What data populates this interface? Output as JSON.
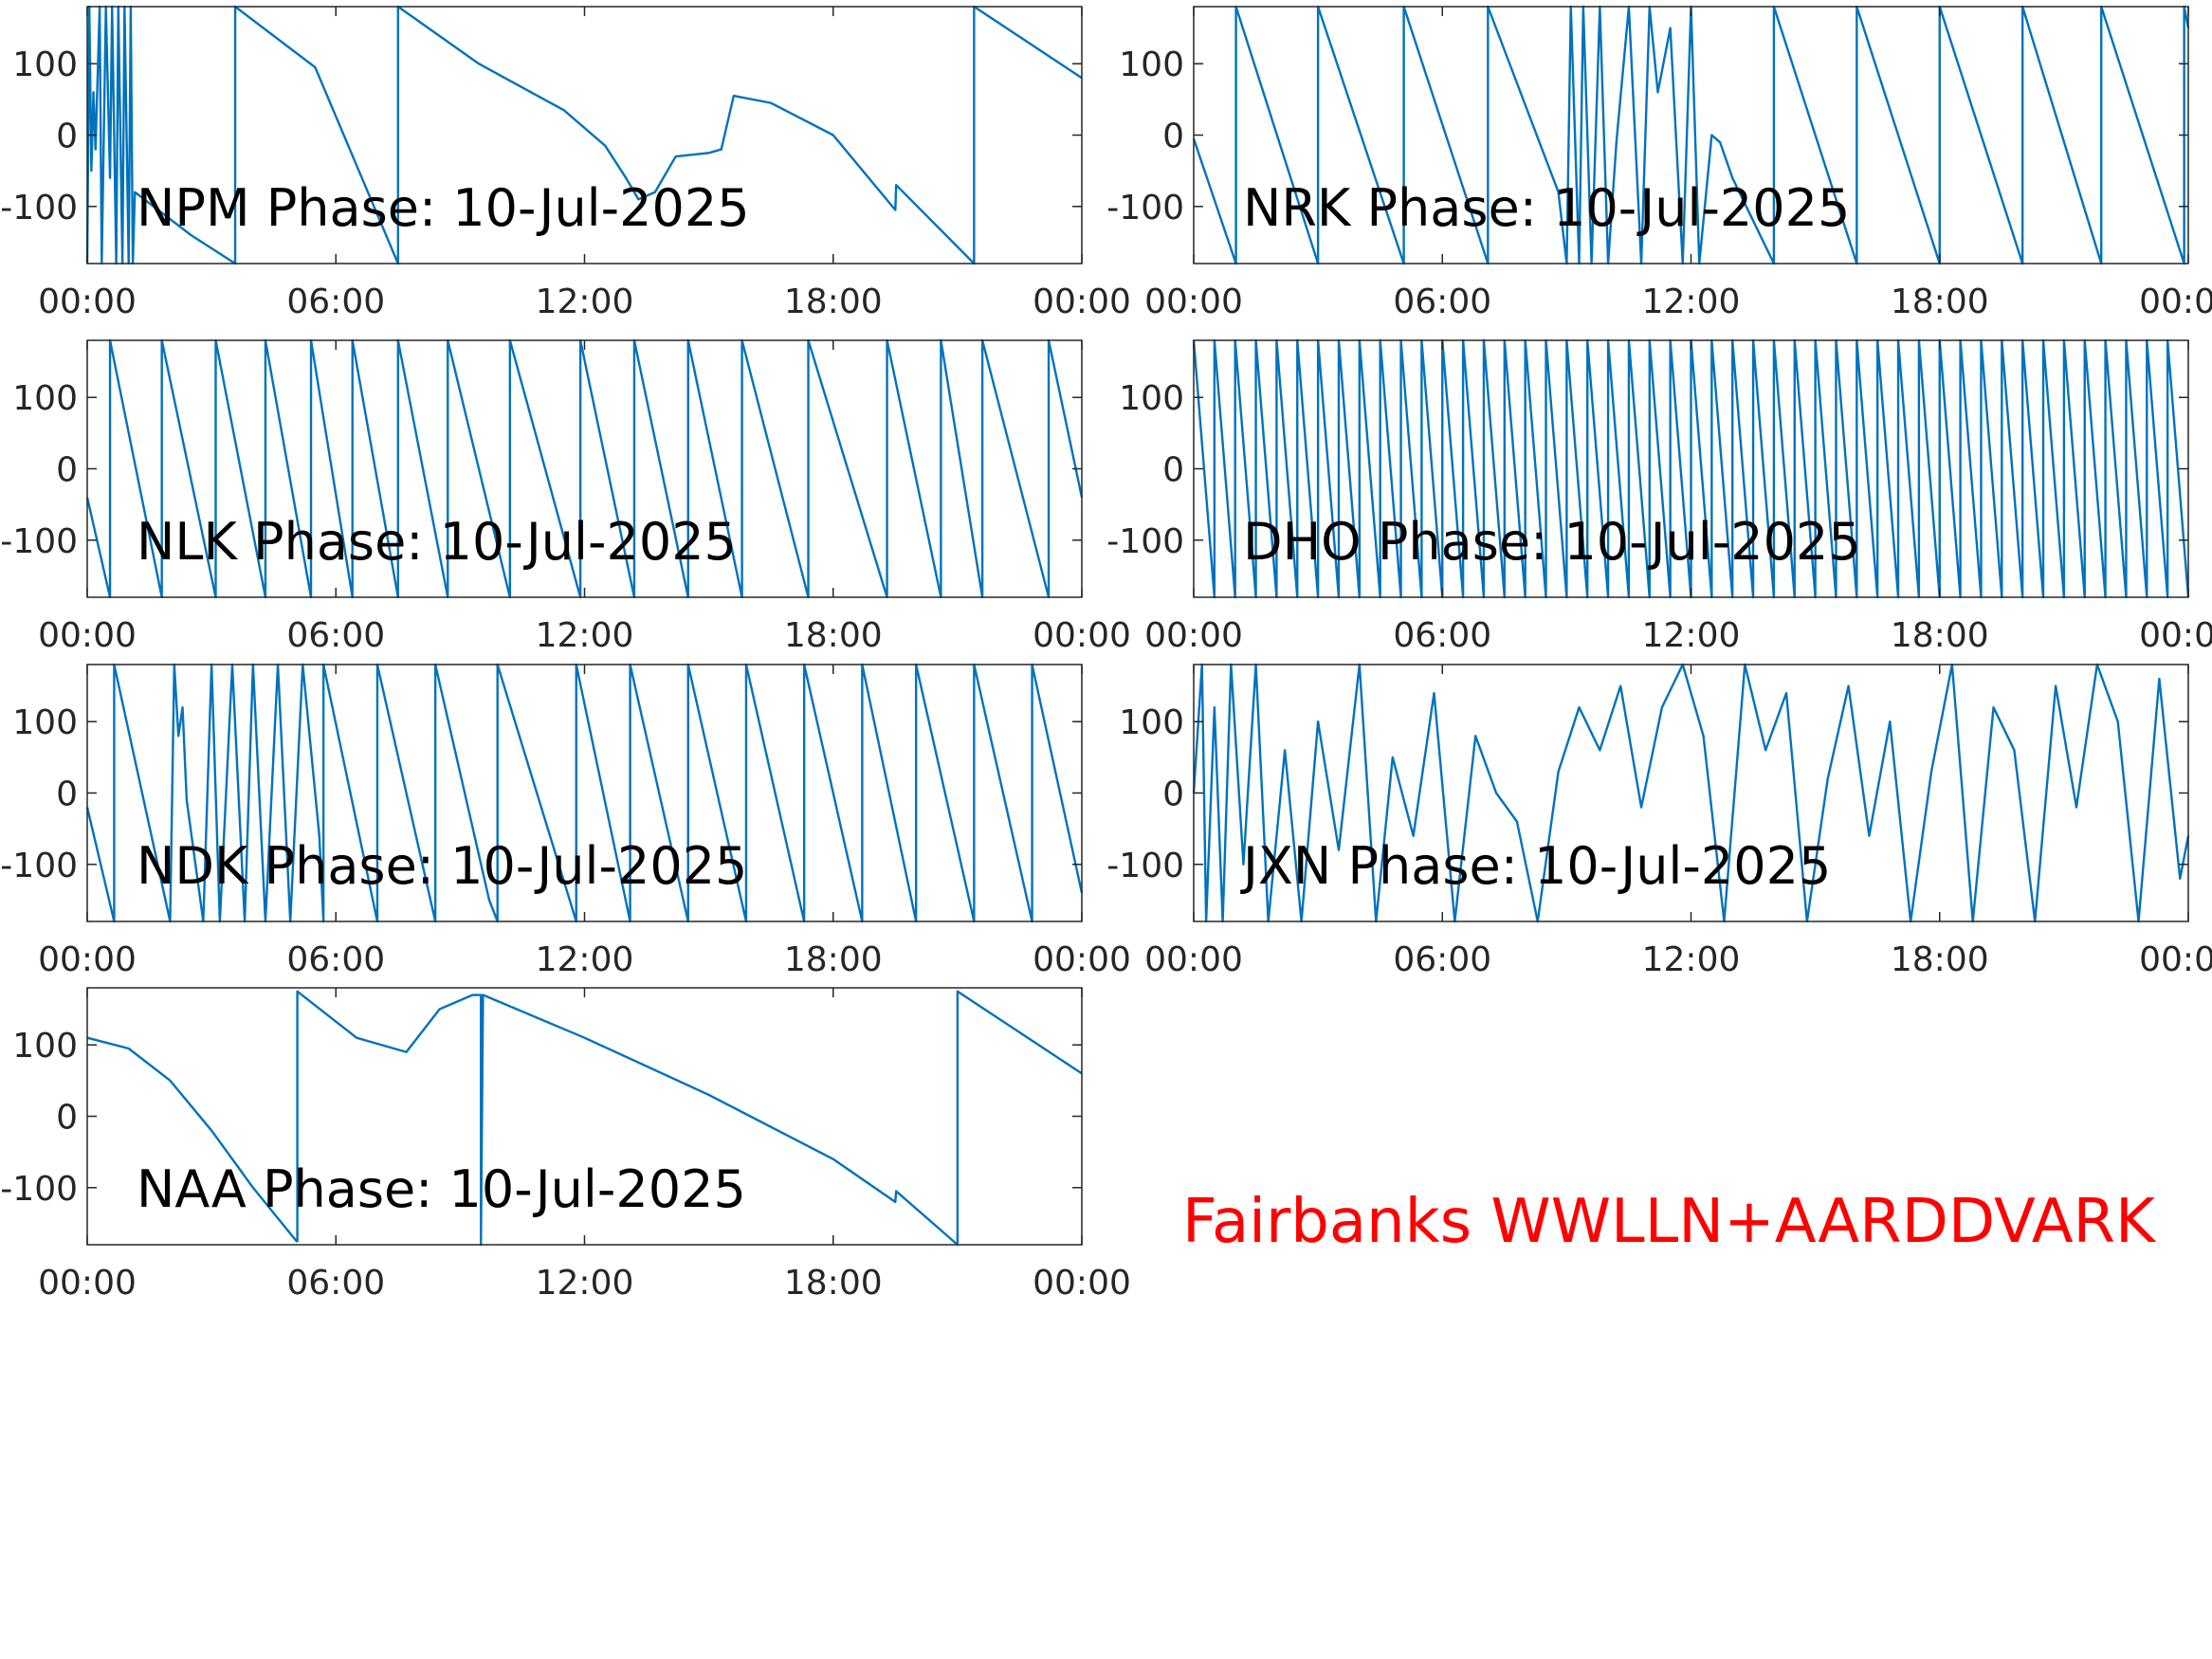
{
  "chart_data": [
    {
      "type": "line",
      "title": "NPM Phase: 10-Jul-2025",
      "color": "#0072bd",
      "x": [
        0,
        0.05,
        0.1,
        0.15,
        0.2,
        0.3,
        0.35,
        0.45,
        0.55,
        0.6,
        0.7,
        0.75,
        0.85,
        0.9,
        1.0,
        1.05,
        1.1,
        1.15,
        2.5,
        3.57,
        3.57,
        5.5,
        7.5,
        7.5,
        9.45,
        11.5,
        12.5,
        13.0,
        13.3,
        13.7,
        14.2,
        15.0,
        15.3,
        15.6,
        16.5,
        18.0,
        19.5,
        19.52,
        21.4,
        21.4,
        24
      ],
      "values": [
        -180,
        180,
        -50,
        60,
        -20,
        180,
        -180,
        180,
        -60,
        180,
        -180,
        180,
        -180,
        180,
        -180,
        180,
        -180,
        -80,
        -140,
        -180,
        180,
        95,
        -180,
        180,
        100,
        35,
        -15,
        -60,
        -90,
        -80,
        -30,
        -25,
        -20,
        55,
        45,
        0,
        -105,
        -70,
        -180,
        180,
        80
      ],
      "xlim": [
        0,
        24
      ],
      "ylim": [
        -180,
        180
      ],
      "xticks": [
        {
          "value": 0,
          "label": "00:00"
        },
        {
          "value": 6,
          "label": "06:00"
        },
        {
          "value": 12,
          "label": "12:00"
        },
        {
          "value": 18,
          "label": "18:00"
        },
        {
          "value": 24,
          "label": "00:00"
        }
      ],
      "yticks": [
        -100,
        0,
        100
      ]
    },
    {
      "type": "line",
      "title": "NRK Phase: 10-Jul-2025",
      "color": "#0072bd",
      "x": [
        0,
        1.02,
        1.02,
        3.0,
        3.0,
        5.07,
        5.07,
        7.1,
        7.1,
        8.8,
        9.0,
        9.1,
        9.3,
        9.4,
        9.6,
        9.8,
        10.0,
        10.2,
        10.5,
        10.8,
        11.0,
        11.2,
        11.5,
        11.8,
        12.0,
        12.2,
        12.5,
        12.7,
        13.0,
        14.0,
        14.0,
        16.0,
        16.0,
        18.0,
        18.0,
        20.0,
        20.0,
        21.9,
        21.9,
        23.9,
        23.9,
        24
      ],
      "values": [
        -5,
        -180,
        180,
        -180,
        180,
        -180,
        180,
        -180,
        180,
        -80,
        -180,
        180,
        -180,
        180,
        -180,
        180,
        -180,
        -10,
        180,
        -180,
        180,
        60,
        150,
        -180,
        180,
        -180,
        0,
        -10,
        -60,
        -180,
        180,
        -180,
        180,
        -180,
        180,
        -180,
        180,
        -180,
        180,
        -180,
        180,
        150
      ],
      "xlim": [
        0,
        24
      ],
      "ylim": [
        -180,
        180
      ],
      "xticks": [
        {
          "value": 0,
          "label": "00:00"
        },
        {
          "value": 6,
          "label": "06:00"
        },
        {
          "value": 12,
          "label": "12:00"
        },
        {
          "value": 18,
          "label": "18:00"
        },
        {
          "value": 24,
          "label": "00:00"
        }
      ],
      "yticks": [
        -100,
        0,
        100
      ]
    },
    {
      "type": "line",
      "title": "NLK Phase: 10-Jul-2025",
      "color": "#0072bd",
      "x": [
        0,
        0.55,
        0.55,
        1.8,
        1.8,
        3.1,
        3.1,
        4.3,
        4.3,
        5.4,
        5.4,
        6.4,
        6.4,
        7.5,
        7.5,
        8.7,
        8.7,
        10.2,
        10.2,
        11.9,
        11.9,
        13.2,
        13.2,
        14.5,
        14.5,
        15.8,
        15.8,
        17.4,
        17.4,
        19.3,
        19.3,
        20.6,
        20.6,
        21.6,
        21.6,
        23.2,
        23.2,
        24
      ],
      "values": [
        -40,
        -180,
        180,
        -180,
        180,
        -180,
        180,
        -180,
        180,
        -180,
        180,
        -180,
        180,
        -180,
        180,
        -180,
        180,
        -180,
        180,
        -180,
        180,
        -180,
        180,
        -180,
        180,
        -180,
        180,
        -180,
        180,
        -180,
        180,
        -180,
        180,
        -180,
        180,
        -180,
        180,
        -40
      ],
      "xlim": [
        0,
        24
      ],
      "ylim": [
        -180,
        180
      ],
      "xticks": [
        {
          "value": 0,
          "label": "00:00"
        },
        {
          "value": 6,
          "label": "06:00"
        },
        {
          "value": 12,
          "label": "12:00"
        },
        {
          "value": 18,
          "label": "18:00"
        },
        {
          "value": 24,
          "label": "00:00"
        }
      ],
      "yticks": [
        -100,
        0,
        100
      ]
    },
    {
      "type": "line",
      "title": "DHO Phase: 10-Jul-2025",
      "color": "#0072bd",
      "x": [
        0,
        0.5,
        0.5,
        1,
        1,
        1.5,
        1.5,
        2,
        2,
        2.5,
        2.5,
        3,
        3,
        3.5,
        3.5,
        4,
        4,
        4.5,
        4.5,
        5,
        5,
        5.5,
        5.5,
        6,
        6,
        6.5,
        6.5,
        7,
        7,
        7.5,
        7.5,
        8,
        8,
        8.5,
        8.5,
        9,
        9,
        9.5,
        9.5,
        10,
        10,
        10.5,
        10.5,
        11,
        11,
        11.5,
        11.5,
        12,
        12,
        12.5,
        12.5,
        13,
        13,
        13.5,
        13.5,
        14,
        14,
        14.5,
        14.5,
        15,
        15,
        15.5,
        15.5,
        16,
        16,
        16.5,
        16.5,
        17,
        17,
        17.5,
        17.5,
        18,
        18,
        18.5,
        18.5,
        19,
        19,
        19.5,
        19.5,
        20,
        20,
        20.5,
        20.5,
        21,
        21,
        21.5,
        21.5,
        22,
        22,
        22.5,
        22.5,
        23,
        23,
        23.5,
        23.5,
        24
      ],
      "values": [
        180,
        -180,
        180,
        -180,
        180,
        -180,
        180,
        -180,
        180,
        -180,
        180,
        -180,
        180,
        -180,
        180,
        -180,
        180,
        -180,
        180,
        -180,
        180,
        -180,
        180,
        -180,
        180,
        -180,
        180,
        -180,
        180,
        -180,
        180,
        -180,
        180,
        -180,
        180,
        -180,
        180,
        -180,
        180,
        -180,
        180,
        -180,
        180,
        -180,
        180,
        -180,
        180,
        -180,
        180,
        -180,
        180,
        -180,
        180,
        -180,
        180,
        -180,
        180,
        -180,
        180,
        -180,
        180,
        -180,
        180,
        -180,
        180,
        -180,
        180,
        -180,
        180,
        -180,
        180,
        -180,
        180,
        -180,
        180,
        -180,
        180,
        -180,
        180,
        -180,
        180,
        -180,
        180,
        -180,
        180,
        -180,
        180,
        -180,
        180,
        -180,
        180,
        -180,
        180,
        -180,
        180,
        -180
      ],
      "xlim": [
        0,
        24
      ],
      "ylim": [
        -180,
        180
      ],
      "xticks": [
        {
          "value": 0,
          "label": "00:00"
        },
        {
          "value": 6,
          "label": "06:00"
        },
        {
          "value": 12,
          "label": "12:00"
        },
        {
          "value": 18,
          "label": "18:00"
        },
        {
          "value": 24,
          "label": "00:00"
        }
      ],
      "yticks": [
        -100,
        0,
        100
      ]
    },
    {
      "type": "line",
      "title": "NDK Phase: 10-Jul-2025",
      "color": "#0072bd",
      "x": [
        0,
        0.65,
        0.65,
        2.0,
        2.1,
        2.2,
        2.3,
        2.4,
        2.8,
        3.0,
        3.2,
        3.5,
        3.8,
        4.0,
        4.3,
        4.6,
        4.9,
        5.2,
        5.6,
        5.7,
        5.7,
        7.0,
        7.0,
        8.4,
        8.4,
        9.7,
        9.9,
        9.9,
        11.8,
        11.8,
        13.1,
        13.1,
        14.5,
        14.5,
        15.9,
        15.9,
        17.3,
        17.3,
        18.7,
        18.7,
        20.0,
        20.0,
        21.4,
        21.4,
        22.8,
        22.8,
        24
      ],
      "values": [
        -20,
        -180,
        180,
        -180,
        180,
        80,
        120,
        -10,
        -180,
        180,
        -180,
        180,
        -180,
        180,
        -180,
        180,
        -180,
        180,
        -60,
        -180,
        180,
        -180,
        180,
        -180,
        180,
        -150,
        -180,
        180,
        -180,
        180,
        -180,
        180,
        -180,
        180,
        -180,
        180,
        -180,
        180,
        -180,
        180,
        -180,
        180,
        -180,
        180,
        -180,
        180,
        -140
      ],
      "xlim": [
        0,
        24
      ],
      "ylim": [
        -180,
        180
      ],
      "xticks": [
        {
          "value": 0,
          "label": "00:00"
        },
        {
          "value": 6,
          "label": "06:00"
        },
        {
          "value": 12,
          "label": "12:00"
        },
        {
          "value": 18,
          "label": "18:00"
        },
        {
          "value": 24,
          "label": "00:00"
        }
      ],
      "yticks": [
        -100,
        0,
        100
      ]
    },
    {
      "type": "line",
      "title": "JXN Phase: 10-Jul-2025",
      "color": "#0072bd",
      "x": [
        0,
        0.2,
        0.3,
        0.5,
        0.7,
        0.9,
        1.2,
        1.5,
        1.8,
        2.2,
        2.6,
        3.0,
        3.5,
        4.0,
        4.4,
        4.8,
        5.3,
        5.8,
        6.3,
        6.8,
        7.3,
        7.8,
        8.3,
        8.8,
        9.3,
        9.8,
        10.3,
        10.8,
        11.3,
        11.8,
        12.3,
        12.8,
        13.3,
        13.8,
        14.3,
        14.8,
        15.3,
        15.8,
        16.3,
        16.8,
        17.3,
        17.8,
        18.3,
        18.8,
        19.3,
        19.8,
        20.3,
        20.8,
        21.3,
        21.8,
        22.3,
        22.8,
        23.3,
        23.8,
        24
      ],
      "values": [
        0,
        180,
        -180,
        120,
        -180,
        180,
        -100,
        180,
        -180,
        60,
        -180,
        100,
        -80,
        180,
        -180,
        50,
        -60,
        140,
        -180,
        80,
        0,
        -40,
        -180,
        30,
        120,
        60,
        150,
        -20,
        120,
        180,
        80,
        -180,
        180,
        60,
        140,
        -180,
        20,
        150,
        -60,
        100,
        -180,
        30,
        180,
        -180,
        120,
        60,
        -180,
        150,
        -20,
        180,
        100,
        -180,
        160,
        -120,
        -60
      ],
      "xlim": [
        0,
        24
      ],
      "ylim": [
        -180,
        180
      ],
      "xticks": [
        {
          "value": 0,
          "label": "00:00"
        },
        {
          "value": 6,
          "label": "06:00"
        },
        {
          "value": 12,
          "label": "12:00"
        },
        {
          "value": 18,
          "label": "18:00"
        },
        {
          "value": 24,
          "label": "00:00"
        }
      ],
      "yticks": [
        -100,
        0,
        100
      ]
    },
    {
      "type": "line",
      "title": "NAA Phase: 10-Jul-2025",
      "color": "#0072bd",
      "x": [
        0,
        1,
        2,
        3,
        4,
        5.05,
        5.07,
        5.07,
        6.5,
        7.7,
        8.5,
        9.3,
        9.5,
        9.5,
        9.55,
        12,
        15,
        18,
        19.5,
        19.52,
        21.0,
        21.0,
        24
      ],
      "values": [
        110,
        95,
        50,
        -20,
        -100,
        -175,
        -175,
        175,
        110,
        90,
        150,
        170,
        170,
        -180,
        170,
        110,
        30,
        -60,
        -120,
        -105,
        -180,
        175,
        60
      ],
      "xlim": [
        0,
        24
      ],
      "ylim": [
        -180,
        180
      ],
      "xticks": [
        {
          "value": 0,
          "label": "00:00"
        },
        {
          "value": 6,
          "label": "06:00"
        },
        {
          "value": 12,
          "label": "12:00"
        },
        {
          "value": 18,
          "label": "18:00"
        },
        {
          "value": 24,
          "label": "00:00"
        }
      ],
      "yticks": [
        -100,
        0,
        100
      ]
    }
  ],
  "footer_text": "Fairbanks WWLLN+AARDDVARK"
}
